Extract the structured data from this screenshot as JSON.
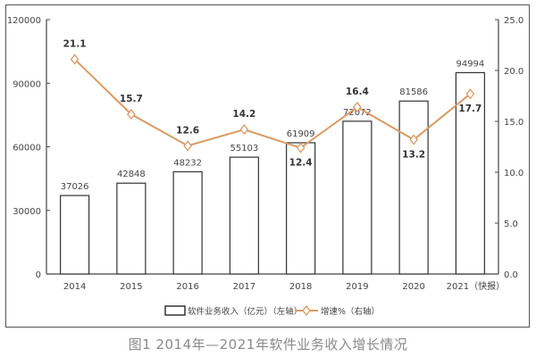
{
  "caption": "图1  2014年—2021年软件业务收入增长情况",
  "legend": {
    "bar_label": "软件业务收入（亿元）（左轴）",
    "line_label": "增速%（右轴）"
  },
  "colors": {
    "bar_fill": "#ffffff",
    "bar_stroke": "#333333",
    "line": "#d89a63",
    "axis": "#444444",
    "text": "#444444",
    "caption": "#8a8a8a"
  },
  "chart_data": {
    "type": "bar+line",
    "title": "图1  2014年—2021年软件业务收入增长情况",
    "categories": [
      "2014",
      "2015",
      "2016",
      "2017",
      "2018",
      "2019",
      "2020",
      "2021（快报）"
    ],
    "series": [
      {
        "name": "软件业务收入（亿元）（左轴）",
        "type": "bar",
        "axis": "left",
        "values": [
          37026,
          42848,
          48232,
          55103,
          61909,
          72072,
          81586,
          94994
        ]
      },
      {
        "name": "增速%（右轴）",
        "type": "line",
        "axis": "right",
        "values": [
          21.1,
          15.7,
          12.6,
          14.2,
          12.4,
          16.4,
          13.2,
          17.7
        ]
      }
    ],
    "left_axis": {
      "ylim": [
        0,
        120000
      ],
      "ticks": [
        "0",
        "30000",
        "60000",
        "90000",
        "120000"
      ]
    },
    "right_axis": {
      "ylim": [
        0,
        25
      ],
      "ticks": [
        "0.0",
        "5.0",
        "10.0",
        "15.0",
        "20.0",
        "25.0"
      ]
    },
    "xlabel": "",
    "ylabel": "",
    "grid": false,
    "legend_position": "bottom"
  }
}
